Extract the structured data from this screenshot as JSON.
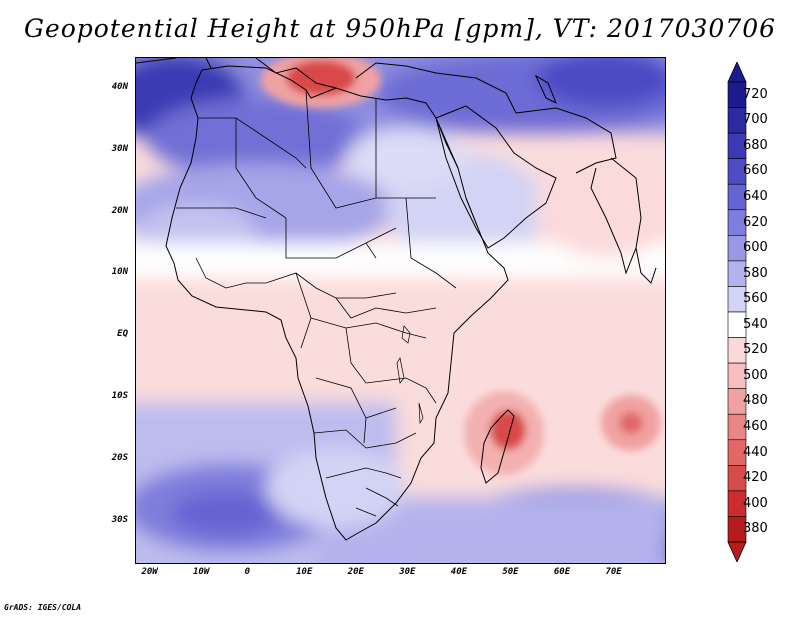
{
  "title": "Geopotential Height at 950hPa [gpm], VT: 2017030706",
  "credit": "GrADS: IGES/COLA",
  "map": {
    "variable": "Geopotential Height",
    "level": "950hPa",
    "units": "gpm",
    "valid_time": "2017030706",
    "lon_range": [
      -23,
      80
    ],
    "lat_range": [
      -37,
      45
    ],
    "x_ticks": [
      {
        "value": -20,
        "label": "20W"
      },
      {
        "value": -10,
        "label": "10W"
      },
      {
        "value": 0,
        "label": "0"
      },
      {
        "value": 10,
        "label": "10E"
      },
      {
        "value": 20,
        "label": "20E"
      },
      {
        "value": 30,
        "label": "30E"
      },
      {
        "value": 40,
        "label": "40E"
      },
      {
        "value": 50,
        "label": "50E"
      },
      {
        "value": 60,
        "label": "60E"
      },
      {
        "value": 70,
        "label": "70E"
      }
    ],
    "y_ticks": [
      {
        "value": 40,
        "label": "40N"
      },
      {
        "value": 30,
        "label": "30N"
      },
      {
        "value": 20,
        "label": "20N"
      },
      {
        "value": 10,
        "label": "10N"
      },
      {
        "value": 0,
        "label": "EQ"
      },
      {
        "value": -10,
        "label": "10S"
      },
      {
        "value": -20,
        "label": "20S"
      },
      {
        "value": -30,
        "label": "30S"
      }
    ]
  },
  "colorbar": {
    "levels": [
      "720",
      "700",
      "680",
      "660",
      "640",
      "620",
      "600",
      "580",
      "560",
      "540",
      "520",
      "500",
      "480",
      "460",
      "440",
      "420",
      "400",
      "380"
    ],
    "colors": [
      "#1c1a8c",
      "#2c2aa0",
      "#3b3ab4",
      "#4d4cc4",
      "#6664d2",
      "#7f7edc",
      "#9998e4",
      "#b3b2ec",
      "#d3d3f5",
      "#ffffff",
      "#fbd9d9",
      "#f6bebe",
      "#f0a2a2",
      "#ea8585",
      "#e26767",
      "#d94a4a",
      "#cc2e2e",
      "#b51d1d"
    ]
  }
}
